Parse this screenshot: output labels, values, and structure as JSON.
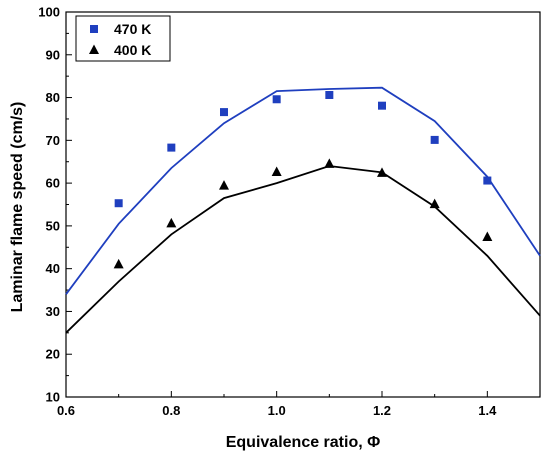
{
  "chart_data": {
    "type": "scatter",
    "xlabel": "Equivalence ratio, Φ",
    "ylabel": "Laminar flame speed (cm/s)",
    "xlim": [
      0.6,
      1.5
    ],
    "ylim": [
      10,
      100
    ],
    "xticks": [
      "0.6",
      "0.8",
      "1.0",
      "1.2",
      "1.4"
    ],
    "yticks": [
      "10",
      "20",
      "30",
      "40",
      "50",
      "60",
      "70",
      "80",
      "90",
      "100"
    ],
    "grid": false,
    "legend_position": "top-left",
    "series": [
      {
        "name": "470 K",
        "color": "#1f3fbf",
        "marker": "square",
        "x": [
          0.7,
          0.8,
          0.9,
          1.0,
          1.1,
          1.2,
          1.3,
          1.4
        ],
        "y": [
          55.3,
          68.3,
          76.6,
          79.6,
          80.6,
          78.1,
          70.1,
          60.6
        ],
        "line_x": [
          0.6,
          0.7,
          0.8,
          0.9,
          1.0,
          1.1,
          1.2,
          1.3,
          1.4,
          1.5
        ],
        "line_y": [
          34.0,
          50.5,
          63.5,
          74.0,
          81.5,
          82.0,
          82.3,
          74.5,
          61.5,
          43.0
        ]
      },
      {
        "name": "400 K",
        "color": "#000000",
        "marker": "triangle",
        "x": [
          0.7,
          0.8,
          0.9,
          1.0,
          1.1,
          1.2,
          1.3,
          1.4
        ],
        "y": [
          41.0,
          50.6,
          59.4,
          62.6,
          64.5,
          62.4,
          55.1,
          47.4
        ],
        "line_x": [
          0.6,
          0.7,
          0.8,
          0.9,
          1.0,
          1.1,
          1.2,
          1.3,
          1.4,
          1.5
        ],
        "line_y": [
          25.0,
          37.0,
          48.0,
          56.5,
          60.0,
          64.0,
          62.5,
          54.5,
          43.0,
          29.0
        ]
      }
    ]
  }
}
